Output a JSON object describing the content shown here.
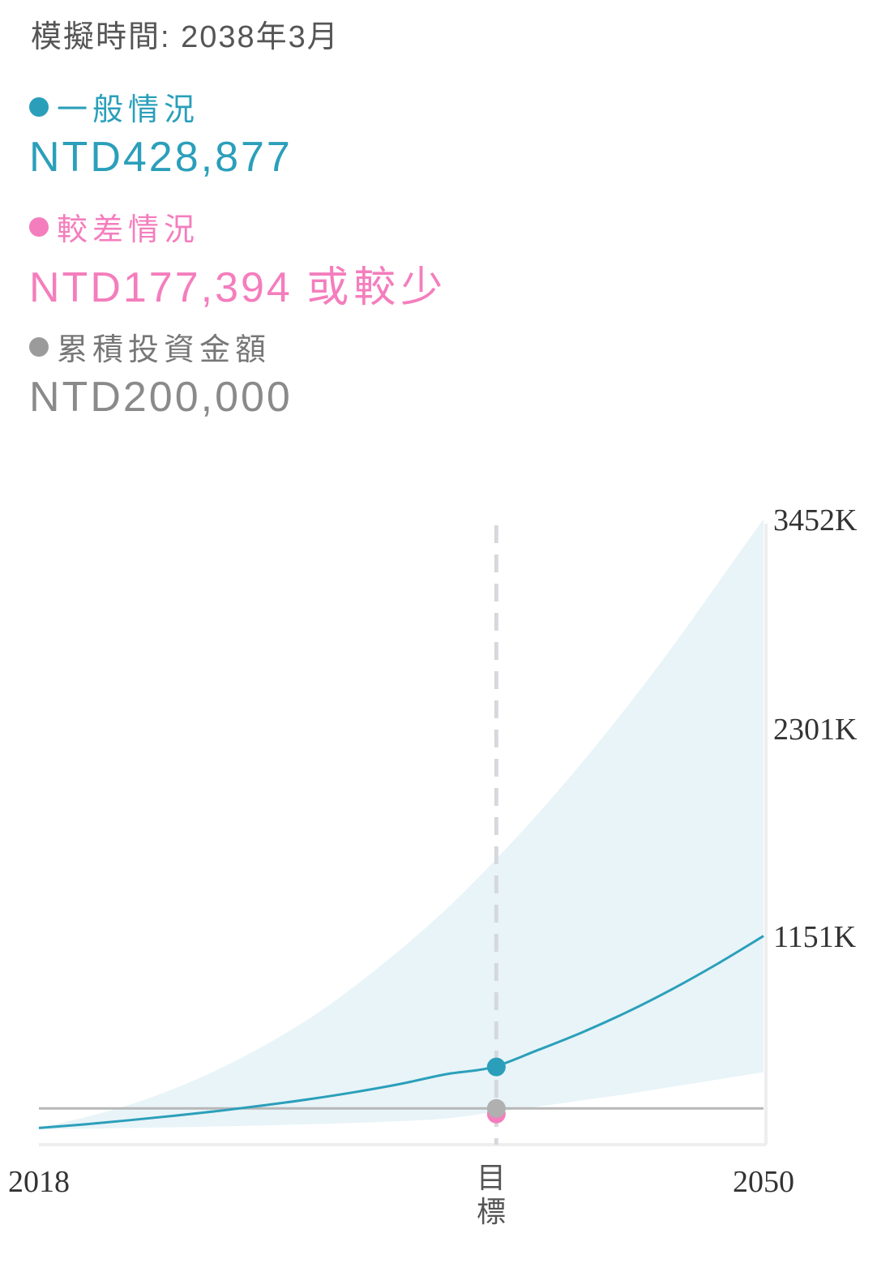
{
  "header": {
    "simulation_time": "模擬時間: 2038年3月"
  },
  "legend": [
    {
      "label": "一般情況",
      "value": "NTD428,877",
      "suffix": "",
      "color": "#2b9fba"
    },
    {
      "label": "較差情況",
      "value": "NTD177,394",
      "suffix": "或較少",
      "color": "#f47ebd"
    },
    {
      "label": "累積投資金額",
      "value": "NTD200,000",
      "suffix": "",
      "color": "#9b9b9b"
    }
  ],
  "target_label": "目標",
  "chart_data": {
    "type": "area",
    "x_ticks": [
      "2018",
      "2050"
    ],
    "y_ticks": [
      "3452K",
      "2301K",
      "1151K"
    ],
    "xlim": [
      2018,
      2050
    ],
    "ylim": [
      0,
      3452
    ],
    "unit": "K",
    "target_x": 2038.2,
    "target_label": "目標",
    "series": [
      {
        "name": "一般情況",
        "type": "line",
        "color": "#2b9fba",
        "x": [
          2018,
          2020,
          2022,
          2024,
          2026,
          2028,
          2030,
          2032,
          2034,
          2036,
          2038,
          2040,
          2042,
          2044,
          2046,
          2048,
          2050
        ],
        "values": [
          92,
          112,
          135,
          160,
          187,
          218,
          252,
          291,
          336,
          389,
          426,
          520,
          620,
          733,
          860,
          1000,
          1151
        ]
      },
      {
        "name": "range_upper",
        "type": "area_upper",
        "color": "#e8f4f8",
        "x": [
          2018,
          2020,
          2022,
          2024,
          2026,
          2028,
          2030,
          2032,
          2034,
          2036,
          2038,
          2040,
          2042,
          2044,
          2046,
          2048,
          2050
        ],
        "values": [
          95,
          150,
          220,
          310,
          420,
          550,
          700,
          880,
          1080,
          1300,
          1550,
          1820,
          2110,
          2420,
          2750,
          3100,
          3452
        ]
      },
      {
        "name": "較差情況",
        "type": "area_lower",
        "color": "#f47ebd",
        "x": [
          2018,
          2020,
          2022,
          2024,
          2026,
          2028,
          2030,
          2032,
          2034,
          2036,
          2038,
          2040,
          2042,
          2044,
          2046,
          2048,
          2050
        ],
        "values": [
          85,
          88,
          92,
          96,
          101,
          106,
          113,
          120,
          130,
          145,
          177,
          210,
          245,
          280,
          320,
          360,
          400
        ]
      },
      {
        "name": "累積投資金額",
        "type": "flat",
        "color": "#9b9b9b",
        "x": [
          2018,
          2050
        ],
        "values": [
          200,
          200
        ]
      }
    ],
    "markers": [
      {
        "series": "一般情況",
        "x": 2038.2,
        "value": 428.877,
        "color": "#2b9fba"
      },
      {
        "series": "較差情況",
        "x": 2038.2,
        "value": 177.394,
        "color": "#f47ebd"
      },
      {
        "series": "累積投資金額",
        "x": 2038.2,
        "value": 200,
        "color": "#b0b0b0"
      }
    ],
    "grid": false
  }
}
